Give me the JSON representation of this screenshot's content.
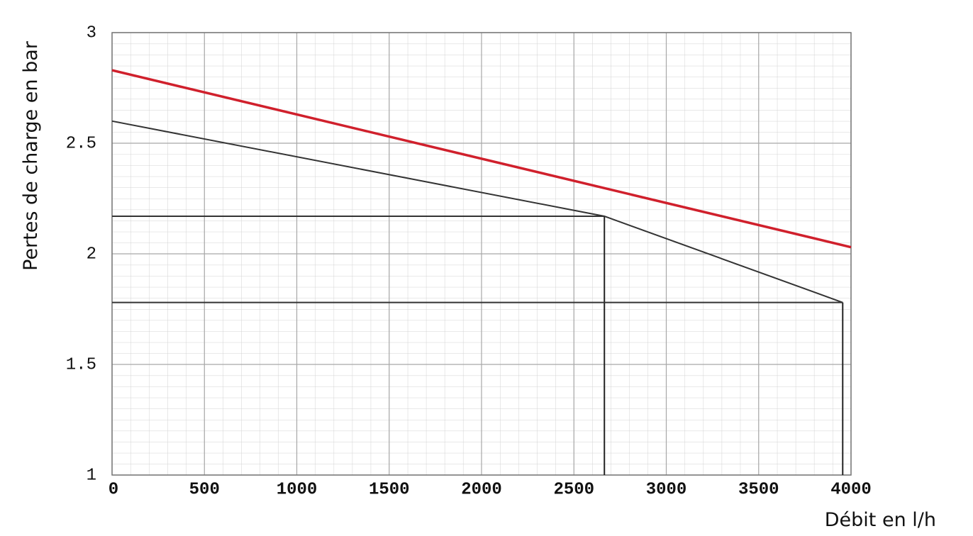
{
  "chart_data": {
    "type": "line",
    "x_label": "Débit en l/h",
    "y_label": "Pertes de charge en bar",
    "xlim": [
      0,
      4000
    ],
    "xticks": [
      0,
      500,
      1000,
      1500,
      2000,
      2500,
      3000,
      3500,
      4000
    ],
    "ylim": [
      1,
      3
    ],
    "yticks": [
      1,
      1.5,
      2,
      2.5,
      3
    ],
    "grid": true,
    "series": [
      {
        "color": "#d0202c",
        "x": [
          0,
          4000
        ],
        "values": [
          2.83,
          2.03
        ]
      },
      {
        "color": "#333333",
        "x": [
          0,
          2665,
          3955
        ],
        "values": [
          2.6,
          2.17,
          1.78
        ],
        "guides": true
      }
    ]
  }
}
